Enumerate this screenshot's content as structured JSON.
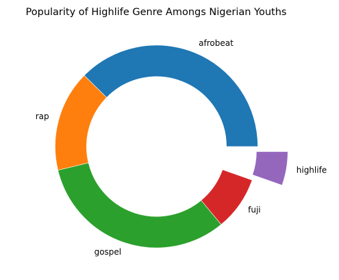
{
  "chart_data": {
    "type": "pie",
    "variant": "donut",
    "title": "Popularity of Highlife Genre Amongs Nigerian Youths",
    "slices": [
      {
        "label": "afrobeat",
        "value": 35,
        "color": "#1f77b4",
        "explode": 0
      },
      {
        "label": "rap",
        "value": 15,
        "color": "#ff7f0e",
        "explode": 0
      },
      {
        "label": "gospel",
        "value": 30,
        "color": "#2ca02c",
        "explode": 0
      },
      {
        "label": "fuji",
        "value": 8,
        "color": "#d62728",
        "explode": 0
      },
      {
        "label": "highlife",
        "value": 5,
        "color": "#9467bd",
        "explode": 0.3
      }
    ],
    "start_angle": 0,
    "direction": "counterclockwise",
    "hole_fraction": 0.69
  }
}
